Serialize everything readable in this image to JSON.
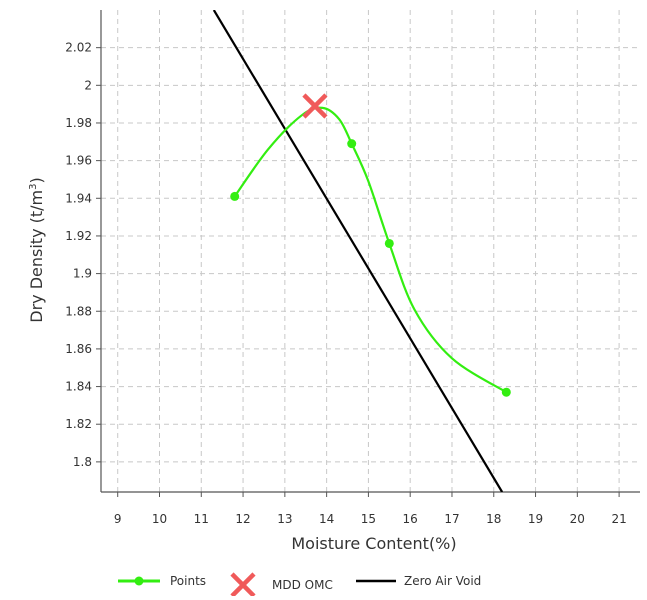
{
  "chart_data": {
    "type": "line",
    "xlabel": "Moisture Content(%)",
    "ylabel_main": "Dry Density (t/m",
    "ylabel_sup": "3",
    "ylabel_close": ")",
    "x_ticks": [
      "9",
      "10",
      "11",
      "12",
      "13",
      "14",
      "15",
      "16",
      "17",
      "18",
      "19",
      "20",
      "21"
    ],
    "y_ticks": [
      "1.8",
      "1.82",
      "1.84",
      "1.86",
      "1.88",
      "1.9",
      "1.92",
      "1.94",
      "1.96",
      "1.98",
      "2",
      "2.02"
    ],
    "xlim": [
      8.6,
      21.5
    ],
    "ylim": [
      1.784,
      2.04
    ],
    "grid": true,
    "legend_position": "bottom",
    "series": [
      {
        "name": "Points",
        "kind": "smooth-line-markers",
        "color": "#33ee11",
        "x": [
          11.8,
          14.6,
          15.5,
          18.3
        ],
        "y": [
          1.941,
          1.969,
          1.916,
          1.837
        ]
      },
      {
        "name": "MDD OMC",
        "kind": "x-marker",
        "color": "#f05a5a",
        "x": [
          13.72
        ],
        "y": [
          1.989
        ]
      },
      {
        "name": "Zero Air Void",
        "kind": "line",
        "color": "#000000",
        "x": [
          11.3,
          18.2
        ],
        "y": [
          2.04,
          1.784
        ]
      }
    ],
    "curve_guide": {
      "x": [
        11.8,
        12.6,
        13.4,
        13.9,
        14.3,
        14.6,
        15.0,
        15.5,
        16.1,
        17.0,
        18.3
      ],
      "y": [
        1.941,
        1.966,
        1.984,
        1.988,
        1.982,
        1.969,
        1.949,
        1.916,
        1.881,
        1.855,
        1.837
      ]
    }
  }
}
